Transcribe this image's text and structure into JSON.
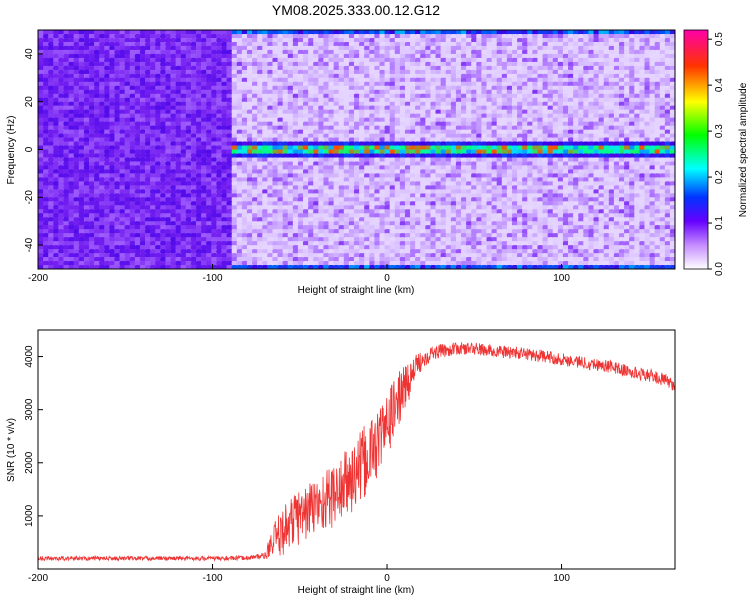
{
  "title": "YM08.2025.333.00.12.G12",
  "chart_data": [
    {
      "type": "heatmap",
      "xlabel": "Height of straight line (km)",
      "ylabel": "Frequency (Hz)",
      "xlim": [
        -200,
        165
      ],
      "ylim": [
        -50,
        50
      ],
      "xticks": [
        -200,
        -100,
        0,
        100
      ],
      "yticks": [
        -40,
        -20,
        0,
        20,
        40
      ],
      "grid": false,
      "colorbar": {
        "label": "Normalized spectral amplitude",
        "range": [
          0.0,
          0.52
        ],
        "ticks": [
          "0.0",
          "0.1",
          "0.2",
          "0.3",
          "0.4",
          "0.5"
        ],
        "colors": [
          "#ffffff",
          "#9900ff",
          "#0000ff",
          "#00ffff",
          "#00ff00",
          "#ffff00",
          "#ff0000",
          "#ff00ff"
        ]
      },
      "features": [
        {
          "desc": "narrow band at 0 Hz",
          "x_range": [
            -85,
            165
          ],
          "y": 0,
          "amplitude_range": [
            0.15,
            0.5
          ]
        },
        {
          "desc": "edge band",
          "x_range": [
            -85,
            165
          ],
          "y": 49,
          "amplitude_range": [
            0.15,
            0.3
          ]
        },
        {
          "desc": "edge band",
          "x_range": [
            -85,
            165
          ],
          "y": -49,
          "amplitude_range": [
            0.15,
            0.3
          ]
        }
      ]
    },
    {
      "type": "line",
      "xlabel": "Height of straight line (km)",
      "ylabel": "SNR (10 * v/v)",
      "xlim": [
        -200,
        165
      ],
      "ylim": [
        0,
        4500
      ],
      "xticks": [
        -200,
        -100,
        0,
        100
      ],
      "yticks": [
        1000,
        2000,
        3000,
        4000
      ],
      "grid": false,
      "series": [
        {
          "color": "#ee3333",
          "x": [
            -200,
            -180,
            -160,
            -140,
            -120,
            -100,
            -90,
            -80,
            -70,
            -65,
            -60,
            -55,
            -50,
            -45,
            -40,
            -35,
            -30,
            -25,
            -20,
            -15,
            -10,
            -5,
            0,
            5,
            10,
            15,
            20,
            25,
            30,
            40,
            50,
            60,
            70,
            80,
            90,
            100,
            110,
            120,
            130,
            140,
            150,
            160,
            165
          ],
          "y": [
            200,
            200,
            200,
            200,
            200,
            200,
            200,
            210,
            250,
            500,
            700,
            900,
            1000,
            1100,
            1200,
            1300,
            1400,
            1550,
            1700,
            1900,
            2150,
            2400,
            2700,
            3100,
            3400,
            3700,
            3950,
            4050,
            4100,
            4150,
            4150,
            4100,
            4080,
            4050,
            4000,
            3950,
            3900,
            3850,
            3800,
            3700,
            3650,
            3550,
            3450
          ],
          "noise": [
            40,
            40,
            40,
            40,
            40,
            40,
            40,
            40,
            60,
            350,
            450,
            500,
            550,
            550,
            550,
            600,
            600,
            650,
            700,
            700,
            700,
            650,
            600,
            550,
            450,
            300,
            180,
            150,
            130,
            120,
            120,
            120,
            120,
            120,
            120,
            120,
            120,
            120,
            120,
            120,
            120,
            120,
            120
          ]
        }
      ]
    }
  ]
}
